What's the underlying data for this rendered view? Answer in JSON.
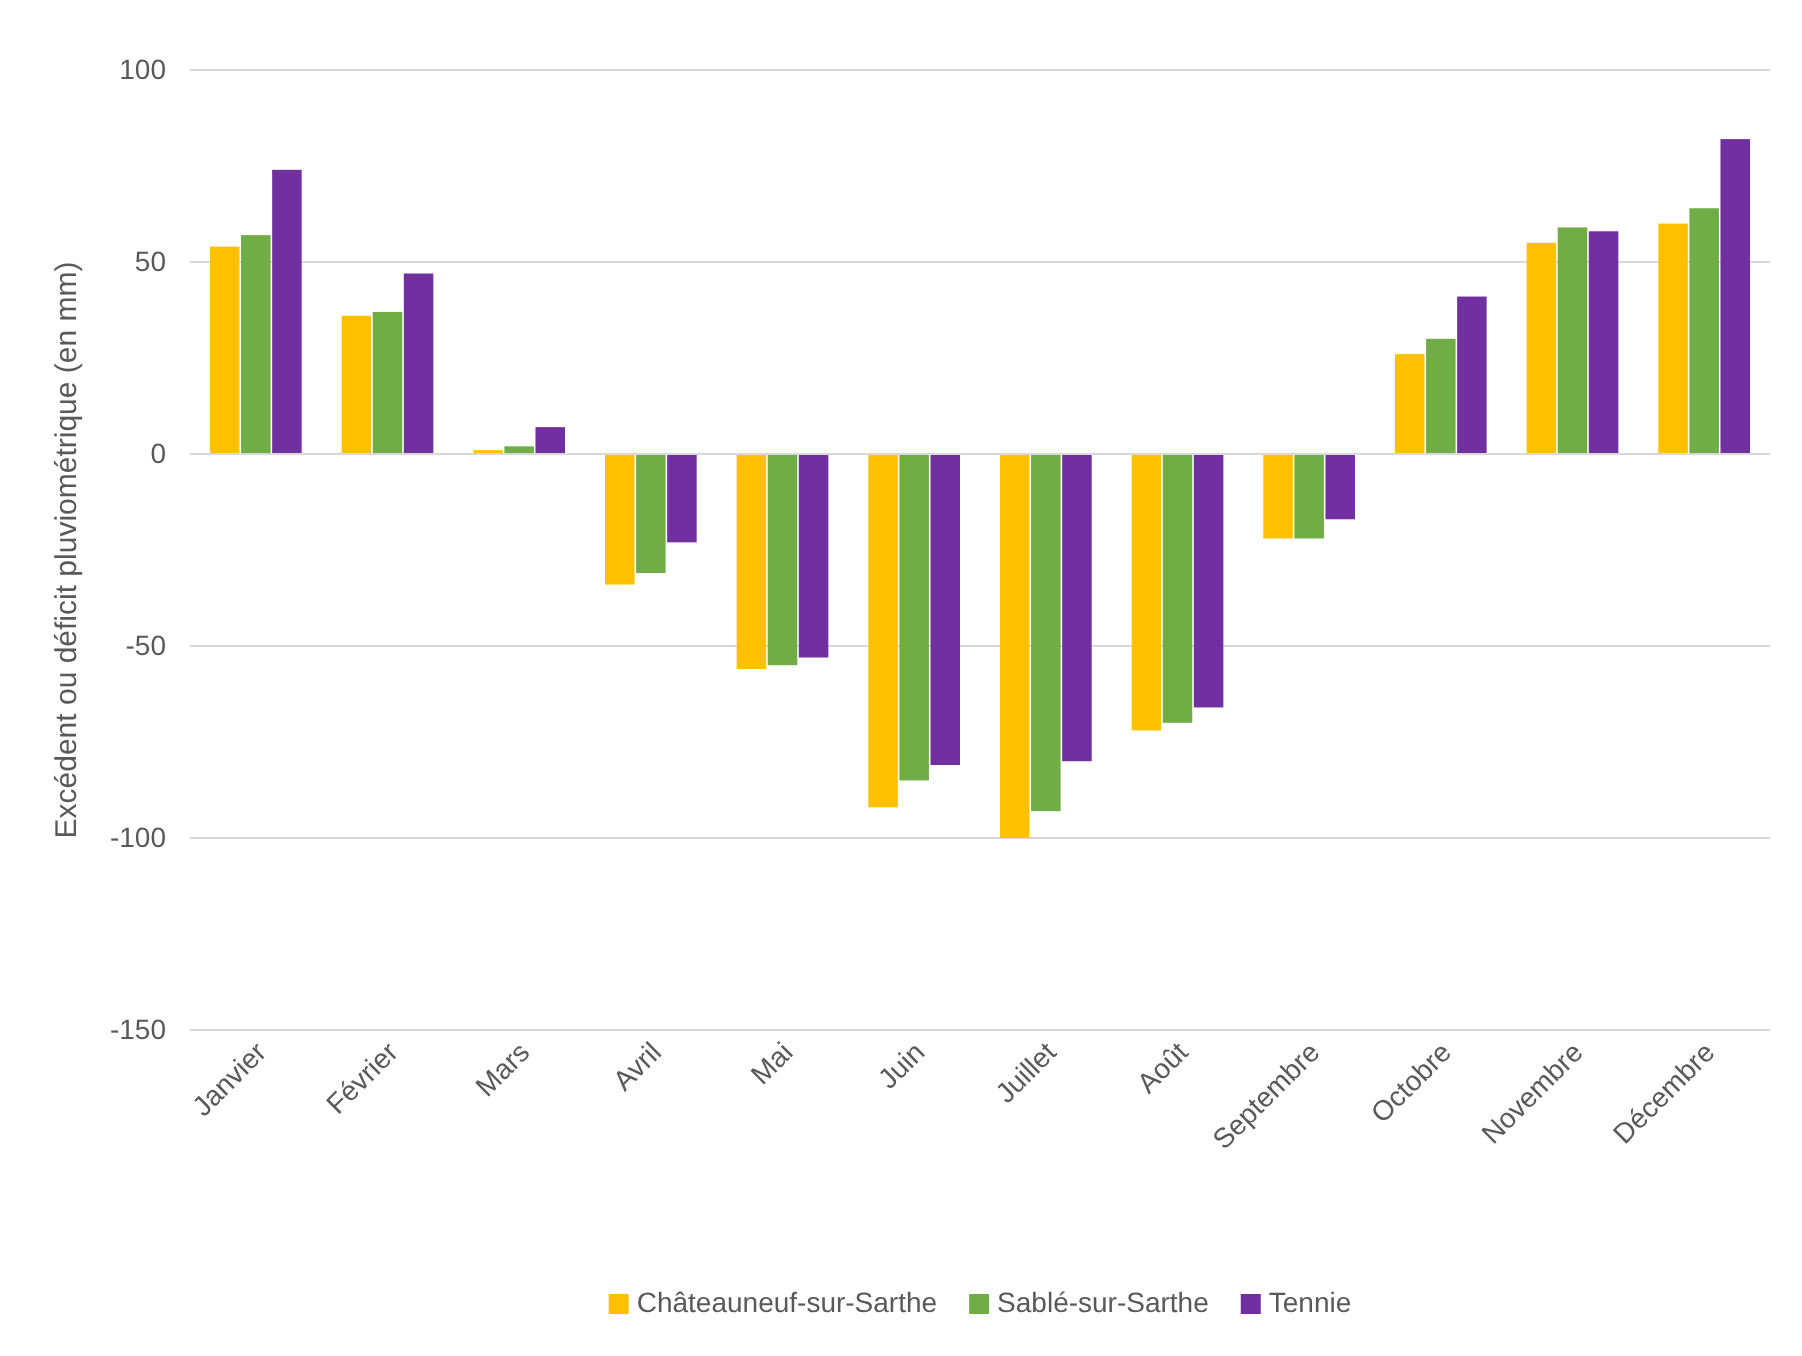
{
  "chart_data": {
    "type": "bar",
    "ylabel": "Excédent ou déficit pluviométrique (en mm)",
    "categories": [
      "Janvier",
      "Février",
      "Mars",
      "Avril",
      "Mai",
      "Juin",
      "Juillet",
      "Août",
      "Septembre",
      "Octobre",
      "Novembre",
      "Décembre"
    ],
    "series": [
      {
        "name": "Châteauneuf-sur-Sarthe",
        "color": "#ffc000",
        "values": [
          54,
          36,
          1,
          -34,
          -56,
          -92,
          -100,
          -72,
          -22,
          26,
          55,
          60
        ]
      },
      {
        "name": "Sablé-sur-Sarthe",
        "color": "#70ad47",
        "values": [
          57,
          37,
          2,
          -31,
          -55,
          -85,
          -93,
          -70,
          -22,
          30,
          59,
          64
        ]
      },
      {
        "name": "Tennie",
        "color": "#7030a0",
        "values": [
          74,
          47,
          7,
          -23,
          -53,
          -81,
          -80,
          -66,
          -17,
          41,
          58,
          82
        ]
      }
    ],
    "ylim": [
      -150,
      100
    ],
    "yticks": [
      -150,
      -100,
      -50,
      0,
      50,
      100
    ],
    "grid": "y",
    "legend": "bottom"
  }
}
